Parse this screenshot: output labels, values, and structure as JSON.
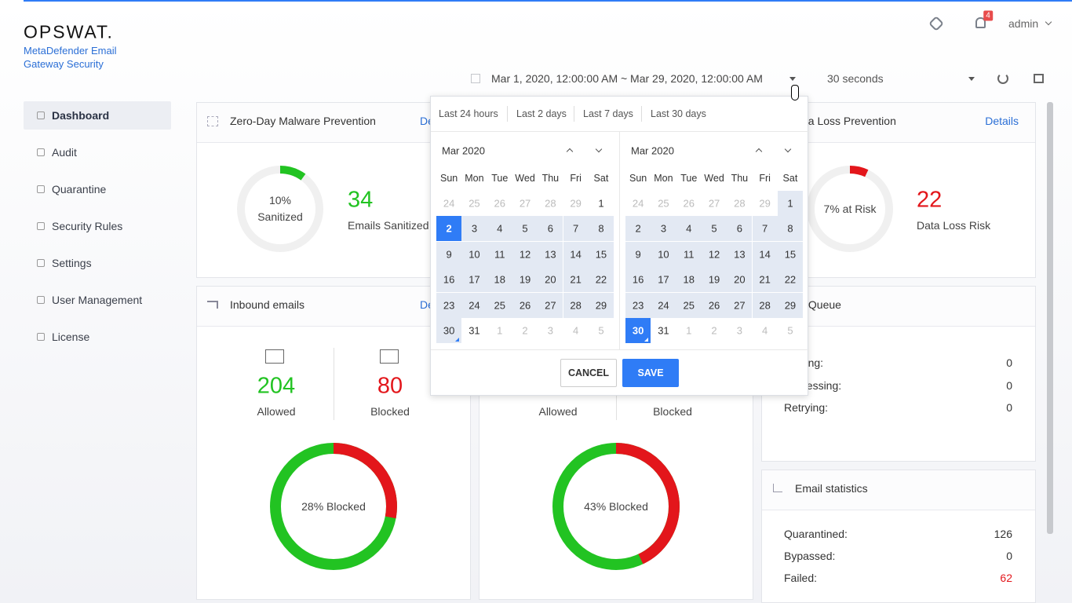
{
  "header": {
    "logo": "OPSWAT.",
    "product": "MetaDefender Email Gateway Security",
    "notifications": "4",
    "user": "admin",
    "date_range": "Mar 1, 2020, 12:00:00 AM ~ Mar 29, 2020, 12:00:00 AM",
    "refresh": "30 seconds"
  },
  "nav": {
    "items": [
      "Dashboard",
      "Audit",
      "Quarantine",
      "Security Rules",
      "Settings",
      "User Management",
      "License"
    ],
    "active": 0
  },
  "cards": {
    "zero_day": {
      "title": "Zero-Day Malware Prevention",
      "link": "Details",
      "percent": 10,
      "percent_label": "10%",
      "percent_caption": "Sanitized",
      "value": 34,
      "value_caption": "Emails Sanitized"
    },
    "data_loss": {
      "title": "Data Loss Prevention",
      "link": "Details",
      "percent": 7,
      "percent_label": "7% at Risk",
      "value": 22,
      "value_caption": "Data Loss Risk"
    },
    "inbound": {
      "title": "Inbound emails",
      "link": "Details",
      "allowed": 204,
      "allowed_label": "Allowed",
      "blocked": 80,
      "blocked_label": "Blocked",
      "percent": 28,
      "percent_label": "28% Blocked"
    },
    "outbound": {
      "allowed_label": "Allowed",
      "blocked_label": "Blocked",
      "percent": 43,
      "percent_label": "43% Blocked"
    },
    "queue": {
      "title": "Email Queue",
      "rows": [
        [
          "Waiting:",
          0
        ],
        [
          "Processing:",
          0
        ],
        [
          "Retrying:",
          0
        ]
      ]
    },
    "stats": {
      "title": "Email statistics",
      "rows": [
        [
          "Quarantined:",
          126
        ],
        [
          "Bypassed:",
          0
        ],
        [
          "Failed:",
          62
        ]
      ]
    }
  },
  "date_picker": {
    "presets": [
      "Last 24 hours",
      "Last 2 days",
      "Last 7 days",
      "Last 30 days"
    ],
    "weekdays": [
      "Sun",
      "Mon",
      "Tue",
      "Wed",
      "Thu",
      "Fri",
      "Sat"
    ],
    "calendars": [
      {
        "month": "Mar 2020",
        "leading": [
          24,
          25,
          26,
          27,
          28,
          29
        ],
        "days": [
          1,
          2,
          3,
          4,
          5,
          6,
          7,
          8,
          9,
          10,
          11,
          12,
          13,
          14,
          15,
          16,
          17,
          18,
          19,
          20,
          21,
          22,
          23,
          24,
          25,
          26,
          27,
          28,
          29,
          30,
          31
        ],
        "trailing": [
          1,
          2,
          3,
          4,
          5
        ],
        "selected": 2,
        "range": [
          2,
          30
        ]
      },
      {
        "month": "Mar 2020",
        "leading": [
          24,
          25,
          26,
          27,
          28,
          29
        ],
        "days": [
          1,
          2,
          3,
          4,
          5,
          6,
          7,
          8,
          9,
          10,
          11,
          12,
          13,
          14,
          15,
          16,
          17,
          18,
          19,
          20,
          21,
          22,
          23,
          24,
          25,
          26,
          27,
          28,
          29,
          30,
          31
        ],
        "trailing": [
          1,
          2,
          3,
          4,
          5
        ],
        "selected": 30,
        "range": [
          1,
          30
        ]
      }
    ],
    "cancel": "CANCEL",
    "save": "SAVE"
  }
}
